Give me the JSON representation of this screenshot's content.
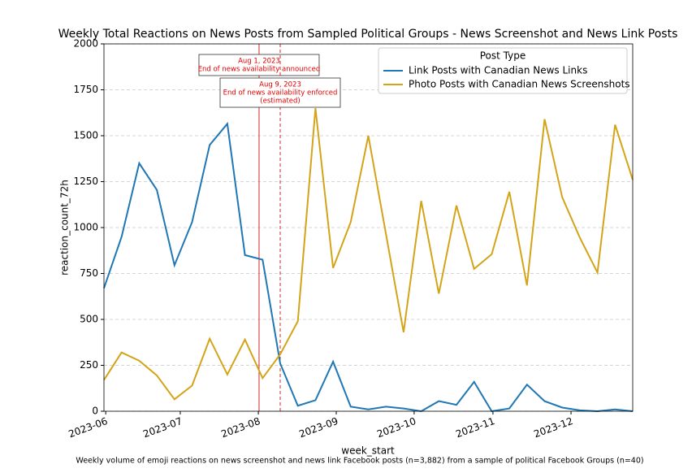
{
  "chart_data": {
    "type": "line",
    "title": "Weekly Total Reactions on News Posts from Sampled Political Groups - News Screenshot and News Link Posts",
    "caption": "Weekly volume of emoji reactions on news screenshot and news link Facebook posts (n=3,882) from a sample of political Facebook Groups (n=40)",
    "x_label": "week_start",
    "y_label": "reaction_count_72h",
    "categories": [
      null,
      null,
      null,
      null,
      null,
      null,
      null,
      null,
      null,
      null,
      null,
      null,
      null,
      null,
      null,
      null,
      null,
      null,
      null,
      null,
      null,
      null,
      null,
      null,
      null,
      null,
      null,
      null,
      null,
      null,
      null
    ],
    "xlim": [
      0,
      30
    ],
    "xticks": [
      {
        "value": 0.1,
        "label": "2023-06"
      },
      {
        "value": 4.33,
        "label": "2023-07"
      },
      {
        "value": 8.76,
        "label": "2023-08"
      },
      {
        "value": 13.18,
        "label": "2023-09"
      },
      {
        "value": 17.6,
        "label": "2023-10"
      },
      {
        "value": 22.07,
        "label": "2023-11"
      },
      {
        "value": 26.5,
        "label": "2023-12"
      }
    ],
    "ylim": [
      0,
      2000
    ],
    "yticks": [
      0,
      250,
      500,
      750,
      1000,
      1250,
      1500,
      1750,
      2000
    ],
    "grid": true,
    "legend_title": "Post Type",
    "legend_position": "upper right",
    "series": [
      {
        "name": "Link Posts with Canadian News Links",
        "color": "#1f77b4",
        "values": [
          670,
          950,
          1350,
          1205,
          795,
          1030,
          1450,
          1565,
          850,
          825,
          260,
          30,
          60,
          270,
          25,
          10,
          25,
          15,
          0,
          55,
          35,
          160,
          0,
          15,
          145,
          55,
          20,
          5,
          0,
          10,
          0
        ]
      },
      {
        "name": "Photo Posts with Canadian News Screenshots",
        "color": "#d4a418",
        "values": [
          170,
          320,
          275,
          195,
          65,
          140,
          395,
          200,
          390,
          180,
          310,
          490,
          1650,
          780,
          1030,
          1500,
          965,
          430,
          1145,
          640,
          1120,
          775,
          855,
          1195,
          685,
          1590,
          1165,
          945,
          755,
          1560,
          1260
        ]
      }
    ],
    "annotations": [
      {
        "x": 8.8,
        "style": "solid",
        "lines": [
          "Aug 1, 2023",
          "End of news availability announced"
        ]
      },
      {
        "x": 10.0,
        "style": "dashed",
        "lines": [
          "Aug 9, 2023",
          "End of news availability enforced",
          "(estimated)"
        ]
      }
    ]
  }
}
